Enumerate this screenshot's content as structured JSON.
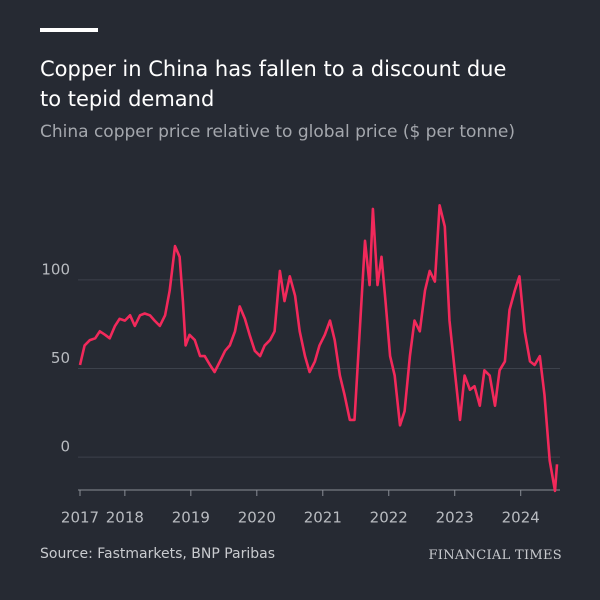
{
  "chart_data": {
    "type": "line",
    "title": "Copper in China has fallen to a discount due to tepid demand",
    "subtitle": "China copper price relative to global price ($ per tonne)",
    "source": "Source: Fastmarkets, BNP Paribas",
    "brand": "FINANCIAL TIMES",
    "x": [
      2017.32,
      2017.39,
      2017.47,
      2017.55,
      2017.62,
      2017.7,
      2017.77,
      2017.85,
      2017.92,
      2018.0,
      2018.08,
      2018.15,
      2018.23,
      2018.3,
      2018.38,
      2018.45,
      2018.53,
      2018.61,
      2018.68,
      2018.76,
      2018.83,
      2018.88,
      2018.92,
      2018.98,
      2019.06,
      2019.14,
      2019.21,
      2019.29,
      2019.36,
      2019.44,
      2019.52,
      2019.59,
      2019.67,
      2019.74,
      2019.82,
      2019.89,
      2019.97,
      2020.05,
      2020.12,
      2020.2,
      2020.27,
      2020.35,
      2020.42,
      2020.5,
      2020.58,
      2020.65,
      2020.73,
      2020.8,
      2020.88,
      2020.95,
      2021.03,
      2021.11,
      2021.18,
      2021.26,
      2021.33,
      2021.41,
      2021.48,
      2021.56,
      2021.64,
      2021.71,
      2021.76,
      2021.83,
      2021.89,
      2021.95,
      2022.02,
      2022.09,
      2022.17,
      2022.24,
      2022.32,
      2022.39,
      2022.47,
      2022.55,
      2022.62,
      2022.7,
      2022.77,
      2022.85,
      2022.92,
      2023.0,
      2023.08,
      2023.15,
      2023.23,
      2023.3,
      2023.38,
      2023.45,
      2023.53,
      2023.61,
      2023.68,
      2023.76,
      2023.83,
      2023.91,
      2023.98,
      2024.06,
      2024.14,
      2024.21,
      2024.29,
      2024.36,
      2024.44,
      2024.52,
      2024.55
    ],
    "series": [
      {
        "color": "#f2295b",
        "values": [
          52,
          63,
          66,
          67,
          71,
          69,
          67,
          74,
          78,
          77,
          80,
          74,
          80,
          81,
          80,
          77,
          74,
          80,
          94,
          119,
          113,
          88,
          63,
          69,
          66,
          57,
          57,
          52,
          48,
          54,
          60,
          63,
          71,
          85,
          78,
          69,
          60,
          57,
          63,
          66,
          71,
          105,
          88,
          102,
          91,
          71,
          57,
          48,
          54,
          63,
          69,
          77,
          66,
          46,
          35,
          21,
          21,
          71,
          122,
          97,
          140,
          97,
          113,
          88,
          57,
          46,
          18,
          26,
          57,
          77,
          71,
          94,
          105,
          99,
          142,
          130,
          77,
          49,
          21,
          46,
          38,
          40,
          29,
          49,
          46,
          29,
          49,
          54,
          83,
          94,
          102,
          71,
          54,
          52,
          57,
          35,
          -2,
          -19,
          -4
        ]
      }
    ],
    "xlim": [
      2017.32,
      2024.55
    ],
    "xticks": [
      {
        "value": 2017.32,
        "label": "2017"
      },
      2018,
      2019,
      2020,
      2021,
      2022,
      2023,
      2024
    ],
    "ylim": [
      -18.5,
      145
    ],
    "yticks": [
      0,
      50,
      100
    ],
    "grid": true
  }
}
